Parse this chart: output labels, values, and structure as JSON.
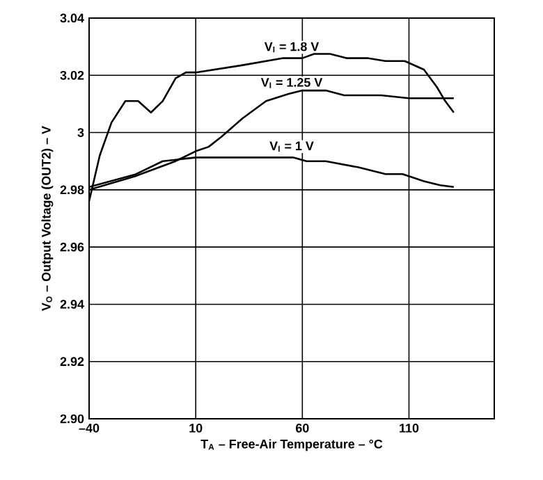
{
  "chart_data": {
    "type": "line",
    "xlabel": "T$_{A}$ – Free-Air Temperature – °C",
    "ylabel": "V$_{O}$ – Output Voltage (OUT2) – V",
    "xlim": [
      -40,
      150
    ],
    "ylim": [
      2.9,
      3.04
    ],
    "xticks": [
      {
        "value": -40,
        "label": "–40"
      },
      10,
      60,
      110
    ],
    "yticks": [
      {
        "value": 2.9,
        "label": "2.90"
      },
      2.92,
      2.94,
      2.96,
      2.98,
      3,
      3.02,
      3.04
    ],
    "grid": true,
    "legend": false,
    "marker": "none",
    "line_style": "solid",
    "series": [
      {
        "name": "V$_{I}$ = 1.8 V",
        "color": "#000000",
        "x": [
          -40,
          -35,
          -29.5,
          -23,
          -17,
          -11,
          -5.5,
          0.6,
          5.4,
          10,
          31.6,
          51,
          60,
          65.5,
          73,
          80.7,
          90.5,
          99,
          108,
          117,
          123,
          127,
          131
        ],
        "values": [
          2.976,
          2.992,
          3.0035,
          3.011,
          3.011,
          3.007,
          3.011,
          3.019,
          3.021,
          3.021,
          3.0235,
          3.026,
          3.026,
          3.0275,
          3.0275,
          3.026,
          3.026,
          3.025,
          3.025,
          3.022,
          3.016,
          3.011,
          3.007
        ]
      },
      {
        "name": "V$_{I}$ = 1.25 V",
        "color": "#000000",
        "x": [
          -40,
          -18.6,
          0.5,
          10,
          16,
          22,
          32,
          43,
          53.5,
          60,
          71,
          79.6,
          97,
          110,
          131
        ],
        "values": [
          2.98,
          2.9847,
          2.99,
          2.9935,
          2.995,
          2.9985,
          3.005,
          3.011,
          3.0135,
          3.0147,
          3.0147,
          3.013,
          3.013,
          3.012,
          3.012
        ]
      },
      {
        "name": "V$_{I}$ = 1 V",
        "color": "#000000",
        "x": [
          -40,
          -18.6,
          -5.5,
          10,
          55.6,
          62,
          71,
          86,
          99,
          107,
          117,
          124.6,
          131
        ],
        "values": [
          2.981,
          2.9853,
          2.99,
          2.9913,
          2.9913,
          2.99,
          2.99,
          2.9879,
          2.9855,
          2.9855,
          2.983,
          2.9816,
          2.981
        ]
      }
    ]
  }
}
